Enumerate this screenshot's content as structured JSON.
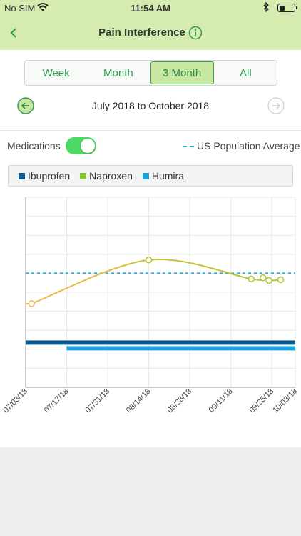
{
  "status_bar": {
    "carrier": "No SIM",
    "time": "11:54 AM",
    "battery_level": 0.4
  },
  "header": {
    "title": "Pain Interference",
    "back_icon": "chevron-left-icon",
    "info_icon": "info-icon"
  },
  "range_tabs": [
    {
      "label": "Week",
      "selected": false
    },
    {
      "label": "Month",
      "selected": false
    },
    {
      "label": "3 Month",
      "selected": true
    },
    {
      "label": "All",
      "selected": false
    }
  ],
  "date_range": "July 2018 to October 2018",
  "medications_toggle": {
    "label": "Medications",
    "on": true
  },
  "population_legend": "US Population Average",
  "colors": {
    "accent": "#2e9a55",
    "header_bg": "#d6ebb0",
    "toggle_on": "#4cd964",
    "trend_start": "#f2b94c",
    "trend_end": "#a9c92c",
    "population": "#2aa8d8"
  },
  "medications": [
    {
      "name": "Ibuprofen",
      "color": "#0d5a8e",
      "start": "07/03/18",
      "end": "10/03/18"
    },
    {
      "name": "Naproxen",
      "color": "#87c43a",
      "start": "",
      "end": ""
    },
    {
      "name": "Humira",
      "color": "#1aa3dc",
      "start": "07/17/18",
      "end": "10/03/18"
    }
  ],
  "chart_data": {
    "type": "line",
    "x_ticks": [
      "07/03/18",
      "07/17/18",
      "07/31/18",
      "08/14/18",
      "08/28/18",
      "09/11/18",
      "09/25/18",
      "10/03/18"
    ],
    "x": [
      "07/05/18",
      "08/14/18",
      "09/18/18",
      "09/22/18",
      "09/24/18",
      "09/28/18"
    ],
    "y": [
      52,
      63.5,
      58.5,
      58.8,
      58.1,
      58.3
    ],
    "ylim": [
      30,
      80
    ],
    "population_average": 60,
    "grid": true
  }
}
